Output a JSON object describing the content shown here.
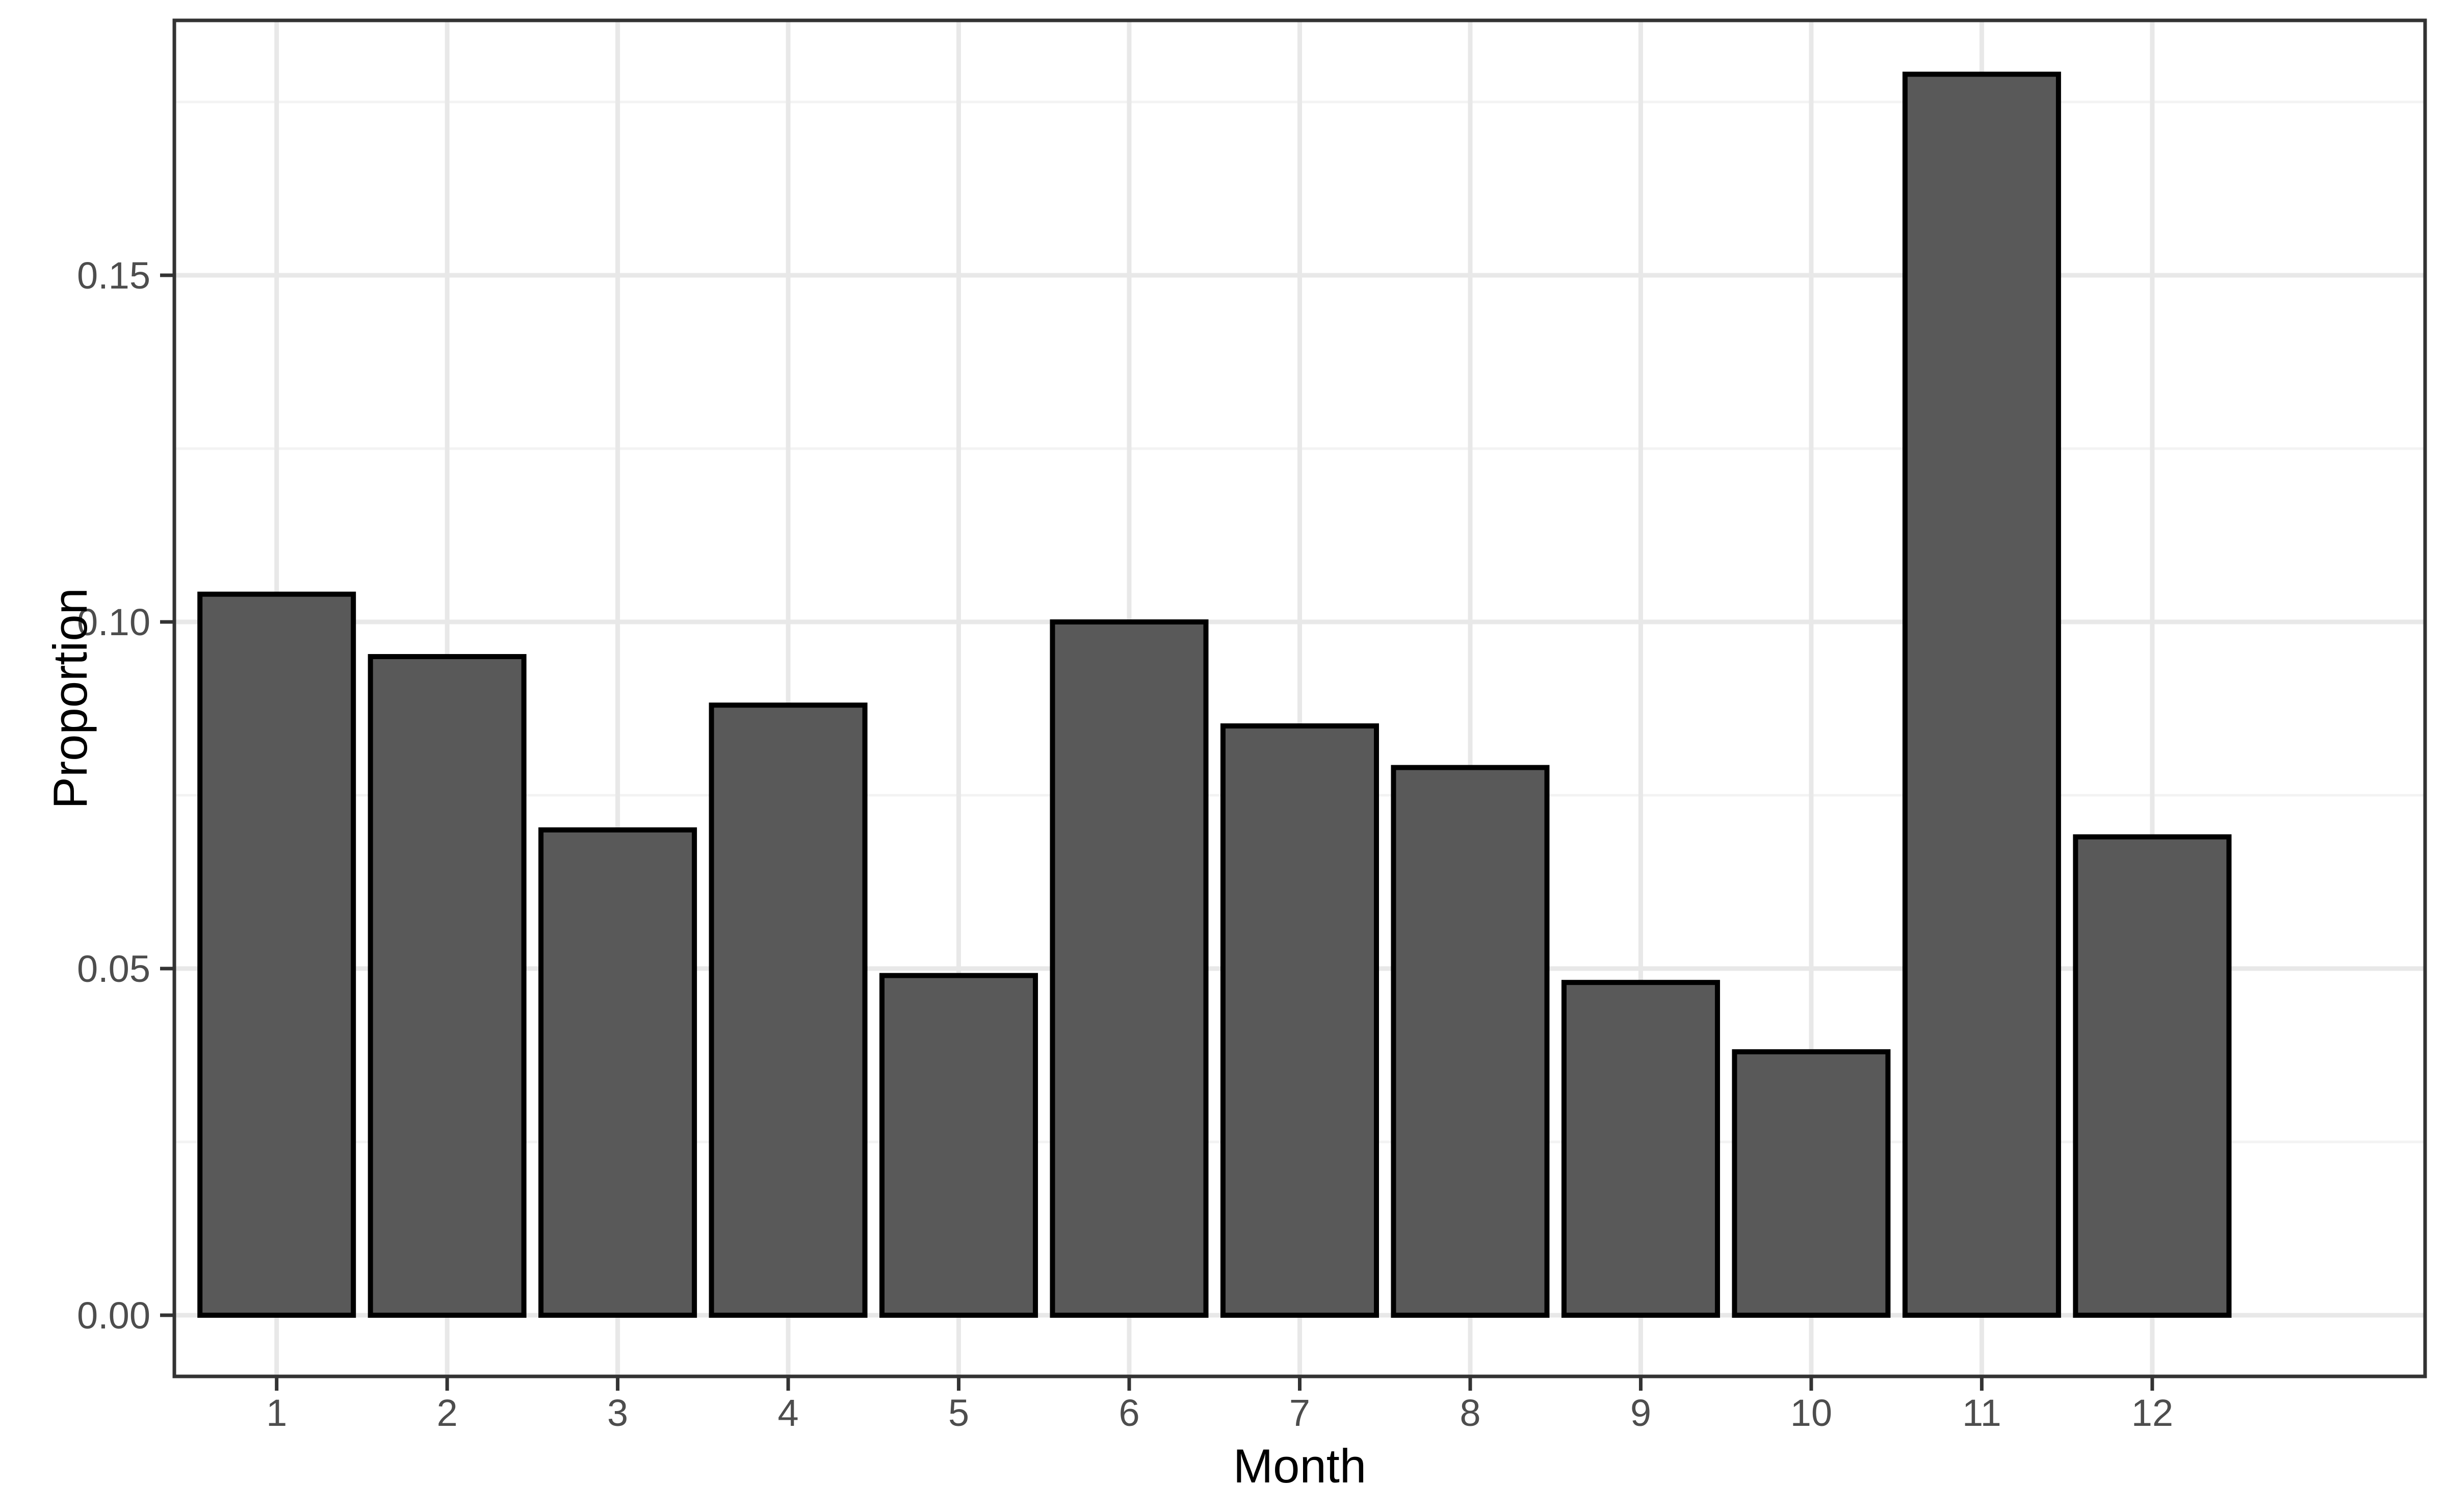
{
  "chart_data": {
    "type": "bar",
    "title": "",
    "xlabel": "Month",
    "ylabel": "Proportion",
    "categories": [
      "1",
      "2",
      "3",
      "4",
      "5",
      "6",
      "7",
      "8",
      "9",
      "10",
      "11",
      "12"
    ],
    "values": [
      0.104,
      0.095,
      0.07,
      0.088,
      0.049,
      0.1,
      0.085,
      0.079,
      0.048,
      0.038,
      0.179,
      0.069
    ],
    "ylim": [
      0,
      0.187
    ],
    "yticks": [
      {
        "value": 0.0,
        "label": "0.00"
      },
      {
        "value": 0.05,
        "label": "0.05"
      },
      {
        "value": 0.1,
        "label": "0.10"
      },
      {
        "value": 0.15,
        "label": "0.15"
      }
    ],
    "y_minor_ticks": [
      0.025,
      0.075,
      0.125,
      0.175
    ],
    "grid": "horizontal major+minor, vertical major at each category",
    "legend": "none",
    "bar_width_fraction": 0.9
  },
  "style": {
    "bar_fill": "#595959",
    "bar_stroke": "#000000",
    "panel_border": "#333333",
    "tick_mark_color": "#333333",
    "tick_label_color": "#4D4D4D",
    "axis_title_color": "#000000",
    "grid_major_color": "#E8E8E8",
    "grid_minor_color": "#F3F3F3",
    "background": "#FFFFFF"
  }
}
